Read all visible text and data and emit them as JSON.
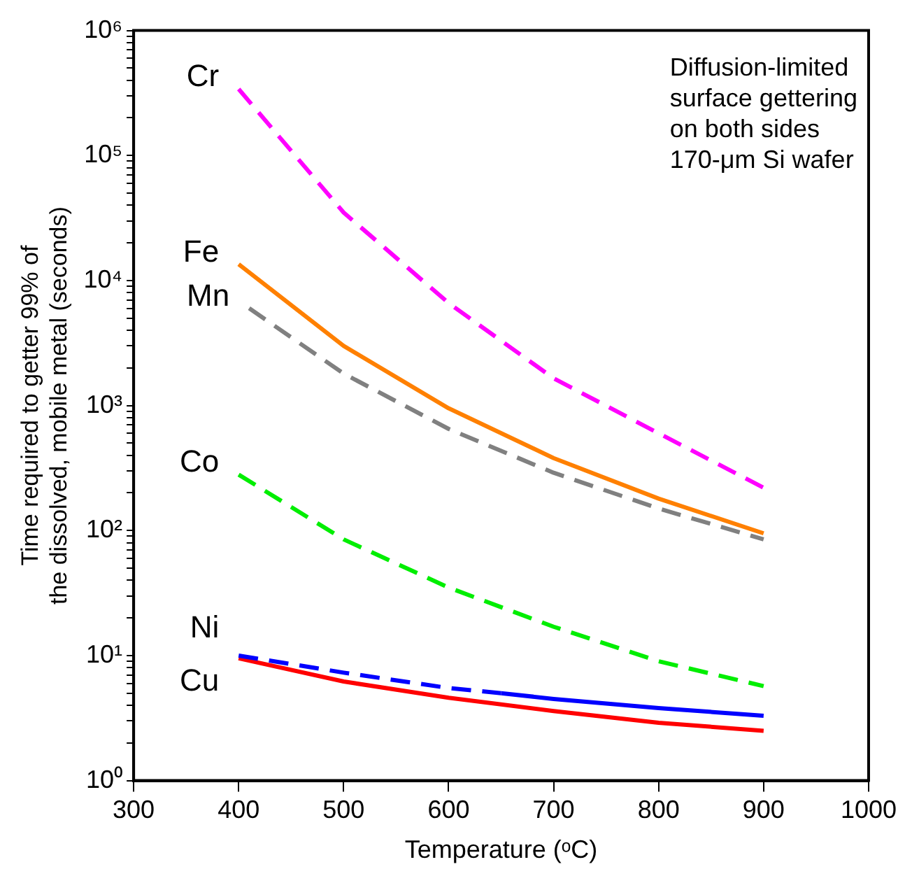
{
  "chart_data": {
    "type": "line",
    "xlabel": "Temperature (ᵒC)",
    "ylabel": "Time required to getter 99% of\nthe dissolved, mobile metal (seconds)",
    "log": "y",
    "grid": false,
    "legend": false,
    "marker": "none",
    "xlim": [
      300,
      1000
    ],
    "xticks": [
      300,
      400,
      500,
      600,
      700,
      800,
      900,
      1000
    ],
    "ylim": [
      1,
      1000000
    ],
    "yticks": [
      {
        "value": 1,
        "label": "10⁰"
      },
      {
        "value": 2,
        "label": null
      },
      {
        "value": 3,
        "label": null
      },
      {
        "value": 4,
        "label": null
      },
      {
        "value": 5,
        "label": null
      },
      {
        "value": 6,
        "label": null
      },
      {
        "value": 7,
        "label": null
      },
      {
        "value": 8,
        "label": null
      },
      {
        "value": 9,
        "label": null
      },
      {
        "value": 10,
        "label": "10¹"
      },
      {
        "value": 20,
        "label": null
      },
      {
        "value": 30,
        "label": null
      },
      {
        "value": 40,
        "label": null
      },
      {
        "value": 50,
        "label": null
      },
      {
        "value": 60,
        "label": null
      },
      {
        "value": 70,
        "label": null
      },
      {
        "value": 80,
        "label": null
      },
      {
        "value": 90,
        "label": null
      },
      {
        "value": 100,
        "label": "10²"
      },
      {
        "value": 200,
        "label": null
      },
      {
        "value": 300,
        "label": null
      },
      {
        "value": 400,
        "label": null
      },
      {
        "value": 500,
        "label": null
      },
      {
        "value": 600,
        "label": null
      },
      {
        "value": 700,
        "label": null
      },
      {
        "value": 800,
        "label": null
      },
      {
        "value": 900,
        "label": null
      },
      {
        "value": 1000,
        "label": "10³"
      },
      {
        "value": 2000,
        "label": null
      },
      {
        "value": 3000,
        "label": null
      },
      {
        "value": 4000,
        "label": null
      },
      {
        "value": 5000,
        "label": null
      },
      {
        "value": 6000,
        "label": null
      },
      {
        "value": 7000,
        "label": null
      },
      {
        "value": 8000,
        "label": null
      },
      {
        "value": 9000,
        "label": null
      },
      {
        "value": 10000,
        "label": "10⁴"
      },
      {
        "value": 20000,
        "label": null
      },
      {
        "value": 30000,
        "label": null
      },
      {
        "value": 40000,
        "label": null
      },
      {
        "value": 50000,
        "label": null
      },
      {
        "value": 60000,
        "label": null
      },
      {
        "value": 70000,
        "label": null
      },
      {
        "value": 80000,
        "label": null
      },
      {
        "value": 90000,
        "label": null
      },
      {
        "value": 100000,
        "label": "10⁵"
      },
      {
        "value": 200000,
        "label": null
      },
      {
        "value": 300000,
        "label": null
      },
      {
        "value": 400000,
        "label": null
      },
      {
        "value": 500000,
        "label": null
      },
      {
        "value": 600000,
        "label": null
      },
      {
        "value": 700000,
        "label": null
      },
      {
        "value": 800000,
        "label": null
      },
      {
        "value": 900000,
        "label": null
      },
      {
        "value": 1000000,
        "label": "10⁶"
      }
    ],
    "annotations": [
      "Diffusion-limited\nsurface gettering\non both sides\n170-μm Si wafer"
    ],
    "series": [
      {
        "name": "Cr",
        "color": "#ff00ff",
        "line_style": "dashed",
        "x": [
          400,
          500,
          600,
          700,
          800,
          900
        ],
        "values": [
          340000,
          35000,
          6600,
          1650,
          600,
          220
        ]
      },
      {
        "name": "Fe",
        "color": "#ff8000",
        "line_style": "solid",
        "x": [
          400,
          500,
          600,
          700,
          800,
          900
        ],
        "values": [
          13500,
          3000,
          950,
          380,
          180,
          95
        ]
      },
      {
        "name": "Mn",
        "color": "#808080",
        "line_style": "dashed",
        "x": [
          410,
          500,
          600,
          700,
          800,
          900
        ],
        "values": [
          6000,
          1800,
          650,
          290,
          150,
          85
        ]
      },
      {
        "name": "Co",
        "color": "#00ee00",
        "line_style": "dashed",
        "x": [
          400,
          500,
          600,
          700,
          800,
          900
        ],
        "values": [
          280,
          85,
          35,
          17,
          9,
          5.7
        ]
      },
      {
        "name": "Ni",
        "color": "#0000ff",
        "line_style": "dashed",
        "x": [
          400,
          500,
          600,
          650
        ],
        "values": [
          10,
          7.3,
          5.5,
          5
        ]
      },
      {
        "color": "#0000ff",
        "line_style": "solid",
        "x": [
          650,
          700,
          800,
          900
        ],
        "values": [
          5,
          4.5,
          3.8,
          3.3
        ]
      },
      {
        "name": "Cu",
        "color": "#ff0000",
        "line_style": "solid",
        "x": [
          400,
          500,
          600,
          700,
          800,
          900
        ],
        "values": [
          9.5,
          6.2,
          4.6,
          3.6,
          2.9,
          2.5
        ]
      }
    ]
  }
}
